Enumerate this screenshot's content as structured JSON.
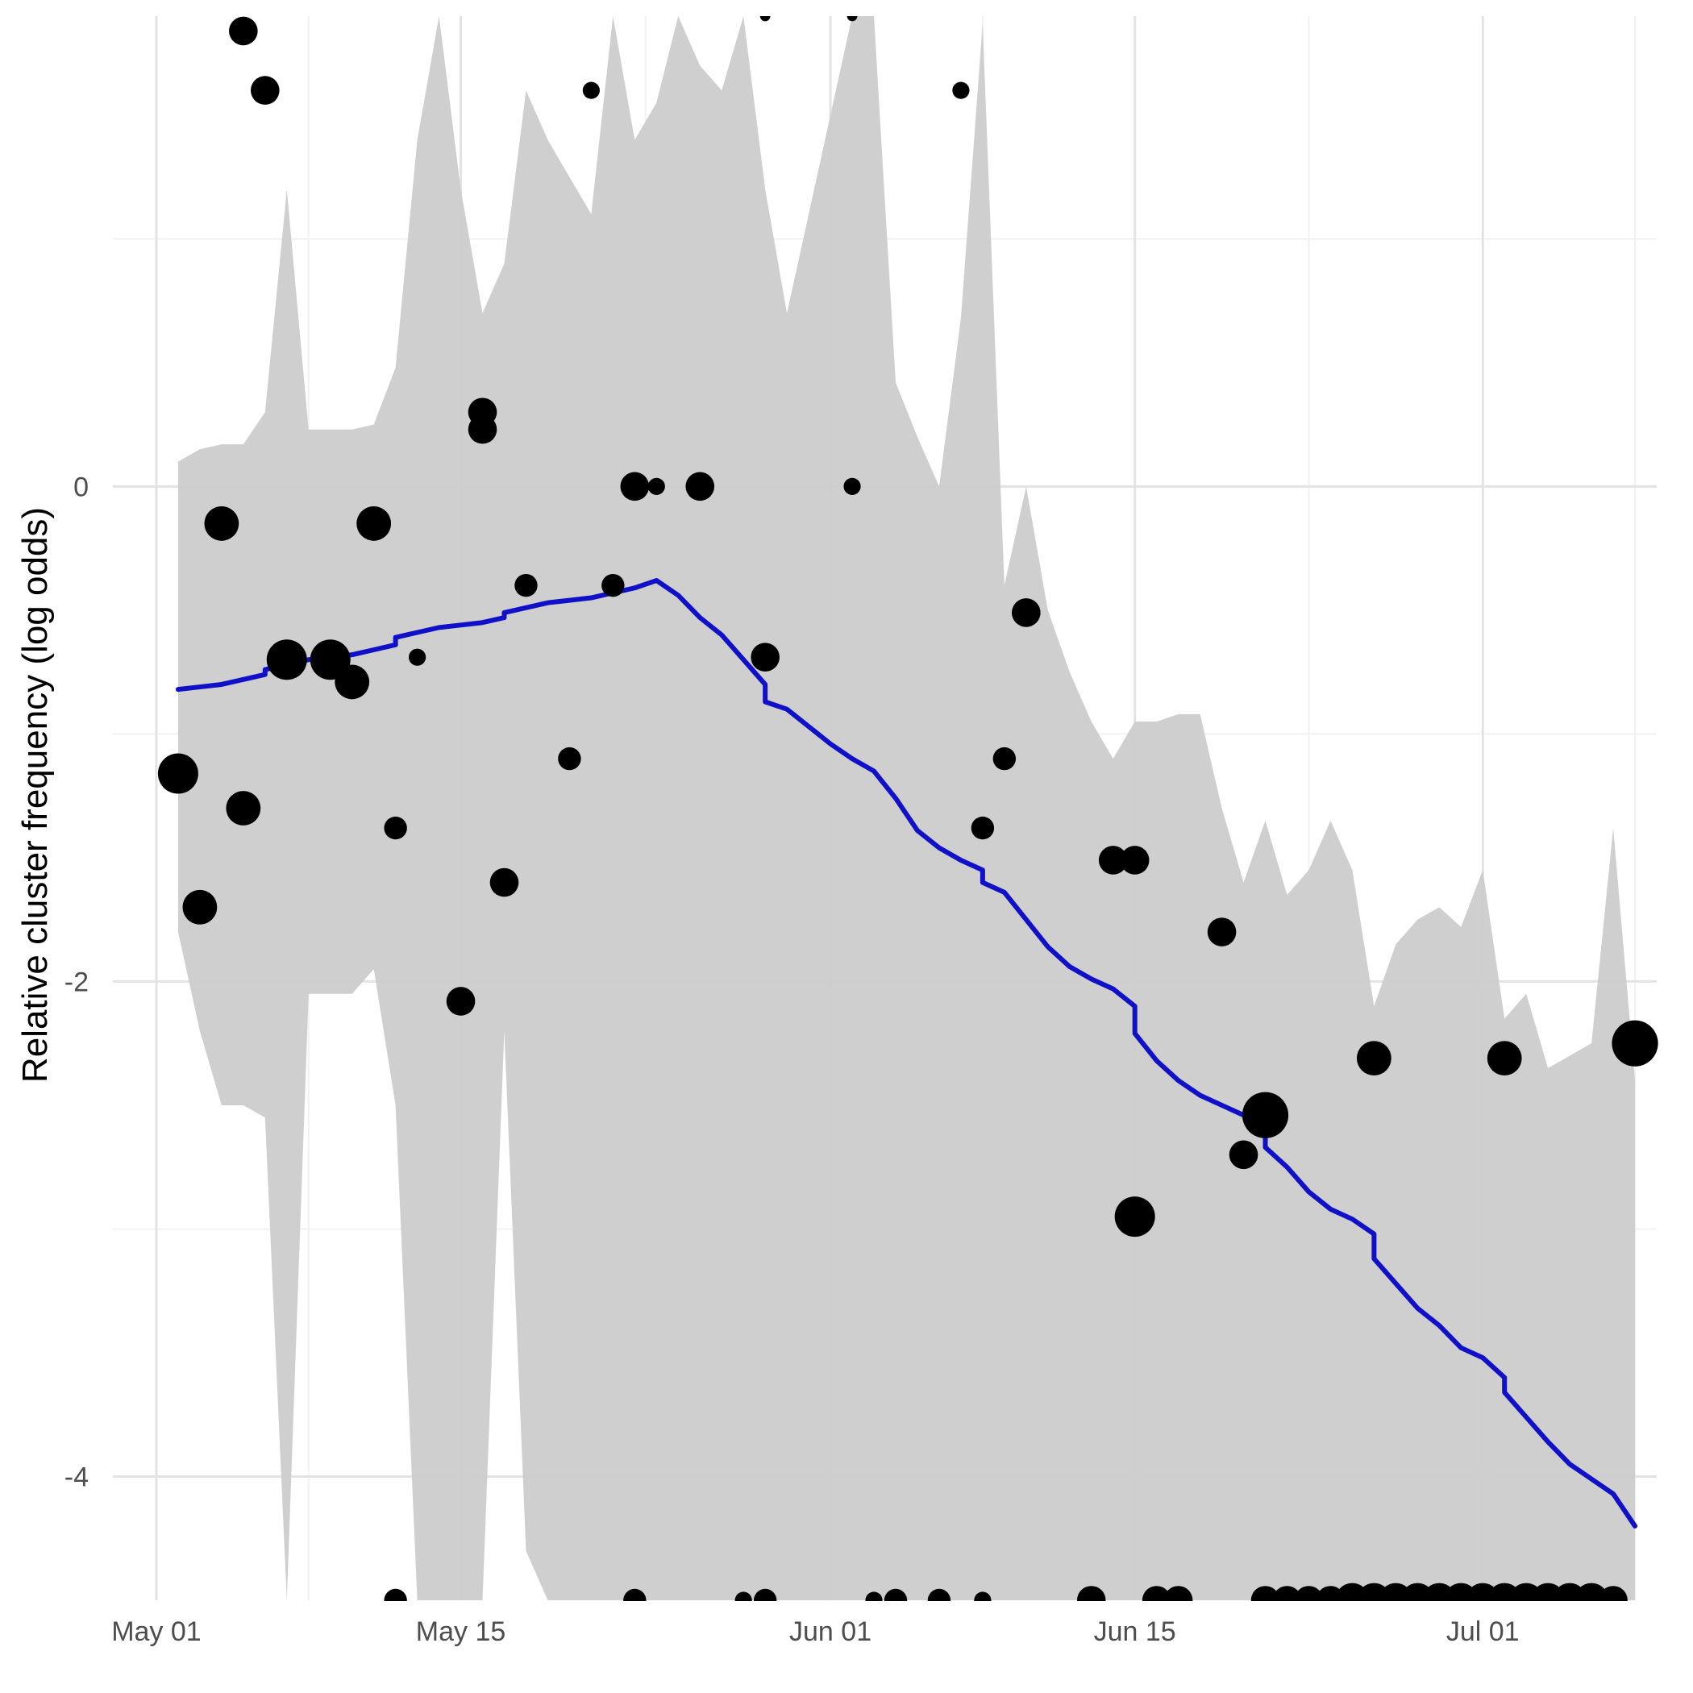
{
  "chart_data": {
    "type": "scatter",
    "title": "",
    "xlabel": "",
    "ylabel": "Relative cluster frequency (log odds)",
    "xlim": [
      "2020-04-29",
      "2020-07-09"
    ],
    "ylim": [
      -4.5,
      1.9
    ],
    "x_ticks": [
      "2020-05-01",
      "2020-05-15",
      "2020-06-01",
      "2020-06-15",
      "2020-07-01"
    ],
    "x_tick_labels": [
      "May 01",
      "May 15",
      "Jun 01",
      "Jun 15",
      "Jul 01"
    ],
    "y_ticks": [
      0,
      -2,
      -4
    ],
    "y_tick_labels": [
      "0",
      "-2",
      "-4"
    ],
    "grid": true,
    "colors": {
      "band": "#cccccc",
      "line": "#1010c8",
      "points": "#000000",
      "grid_major": "#e3e3e3",
      "grid_minor": "#f1f1f1"
    },
    "band": {
      "name": "confidence interval",
      "x": [
        "2020-05-02",
        "2020-05-03",
        "2020-05-04",
        "2020-05-05",
        "2020-05-06",
        "2020-05-07",
        "2020-05-08",
        "2020-05-09",
        "2020-05-10",
        "2020-05-11",
        "2020-05-12",
        "2020-05-13",
        "2020-05-14",
        "2020-05-15",
        "2020-05-16",
        "2020-05-17",
        "2020-05-18",
        "2020-05-19",
        "2020-05-20",
        "2020-05-21",
        "2020-05-22",
        "2020-05-23",
        "2020-05-24",
        "2020-05-25",
        "2020-05-26",
        "2020-05-27",
        "2020-05-28",
        "2020-05-29",
        "2020-05-30",
        "2020-05-31",
        "2020-06-01",
        "2020-06-02",
        "2020-06-03",
        "2020-06-04",
        "2020-06-05",
        "2020-06-06",
        "2020-06-07",
        "2020-06-08",
        "2020-06-09",
        "2020-06-10",
        "2020-06-11",
        "2020-06-12",
        "2020-06-13",
        "2020-06-14",
        "2020-06-15",
        "2020-06-16",
        "2020-06-17",
        "2020-06-18",
        "2020-06-19",
        "2020-06-20",
        "2020-06-21",
        "2020-06-22",
        "2020-06-23",
        "2020-06-24",
        "2020-06-25",
        "2020-06-26",
        "2020-06-27",
        "2020-06-28",
        "2020-06-29",
        "2020-06-30",
        "2020-07-01",
        "2020-07-02",
        "2020-07-03",
        "2020-07-04",
        "2020-07-05",
        "2020-07-06",
        "2020-07-07",
        "2020-07-08"
      ],
      "upper": [
        0.1,
        0.15,
        0.17,
        0.17,
        0.3,
        1.2,
        0.23,
        0.23,
        0.23,
        0.25,
        0.48,
        1.4,
        1.9,
        1.2,
        0.7,
        0.9,
        1.6,
        1.4,
        1.25,
        1.1,
        1.9,
        1.4,
        1.55,
        1.9,
        1.7,
        1.6,
        1.9,
        1.2,
        0.7,
        1.1,
        1.5,
        1.9,
        1.9,
        0.42,
        0.2,
        0.0,
        0.68,
        1.87,
        -0.4,
        0.0,
        -0.5,
        -0.75,
        -0.95,
        -1.1,
        -0.95,
        -0.95,
        -0.92,
        -0.92,
        -1.3,
        -1.6,
        -1.35,
        -1.65,
        -1.55,
        -1.35,
        -1.55,
        -2.1,
        -1.85,
        -1.75,
        -1.7,
        -1.78,
        -1.55,
        -2.15,
        -2.05,
        -2.35,
        -2.3,
        -2.25,
        -1.38,
        -2.4
      ],
      "lower": [
        -1.8,
        -2.2,
        -2.5,
        -2.5,
        -2.55,
        -4.5,
        -2.05,
        -2.05,
        -2.05,
        -1.95,
        -2.5,
        -4.5,
        -4.5,
        -4.5,
        -4.5,
        -2.2,
        -4.3,
        -4.5,
        -4.5,
        -4.5,
        -4.5,
        -4.5,
        -4.5,
        -4.5,
        -4.5,
        -4.5,
        -4.5,
        -4.5,
        -4.5,
        -4.5,
        -4.5,
        -4.5,
        -4.5,
        -4.5,
        -4.5,
        -4.5,
        -4.5,
        -4.5,
        -4.5,
        -4.5,
        -4.5,
        -4.5,
        -4.5,
        -4.5,
        -4.5,
        -4.5,
        -4.5,
        -4.5,
        -4.5,
        -4.5,
        -4.5,
        -4.5,
        -4.5,
        -4.5,
        -4.5,
        -4.5,
        -4.5,
        -4.5,
        -4.5,
        -4.5,
        -4.5,
        -4.5,
        -4.5,
        -4.5,
        -4.5,
        -4.5,
        -4.5,
        -4.5
      ]
    },
    "series": [
      {
        "type": "line",
        "x": [
          "2020-05-02",
          "2020-05-03",
          "2020-05-04",
          "2020-05-05",
          "2020-05-06",
          "2020-05-06",
          "2020-05-07",
          "2020-05-08",
          "2020-05-09",
          "2020-05-10",
          "2020-05-11",
          "2020-05-12",
          "2020-05-12",
          "2020-05-13",
          "2020-05-14",
          "2020-05-15",
          "2020-05-16",
          "2020-05-17",
          "2020-05-17",
          "2020-05-18",
          "2020-05-19",
          "2020-05-20",
          "2020-05-21",
          "2020-05-22",
          "2020-05-23",
          "2020-05-24",
          "2020-05-25",
          "2020-05-26",
          "2020-05-27",
          "2020-05-28",
          "2020-05-29",
          "2020-05-29",
          "2020-05-30",
          "2020-05-31",
          "2020-06-01",
          "2020-06-02",
          "2020-06-03",
          "2020-06-04",
          "2020-06-05",
          "2020-06-06",
          "2020-06-07",
          "2020-06-08",
          "2020-06-08",
          "2020-06-09",
          "2020-06-10",
          "2020-06-11",
          "2020-06-12",
          "2020-06-13",
          "2020-06-14",
          "2020-06-15",
          "2020-06-15",
          "2020-06-16",
          "2020-06-17",
          "2020-06-18",
          "2020-06-19",
          "2020-06-20",
          "2020-06-21",
          "2020-06-21",
          "2020-06-22",
          "2020-06-23",
          "2020-06-24",
          "2020-06-25",
          "2020-06-26",
          "2020-06-26",
          "2020-06-27",
          "2020-06-28",
          "2020-06-29",
          "2020-06-30",
          "2020-07-01",
          "2020-07-02",
          "2020-07-02",
          "2020-07-03",
          "2020-07-04",
          "2020-07-05",
          "2020-07-06",
          "2020-07-07",
          "2020-07-08"
        ],
        "values": [
          -0.82,
          -0.81,
          -0.8,
          -0.78,
          -0.76,
          -0.74,
          -0.72,
          -0.7,
          -0.69,
          -0.68,
          -0.66,
          -0.64,
          -0.61,
          -0.59,
          -0.57,
          -0.56,
          -0.55,
          -0.53,
          -0.51,
          -0.49,
          -0.47,
          -0.46,
          -0.45,
          -0.43,
          -0.41,
          -0.38,
          -0.44,
          -0.53,
          -0.6,
          -0.7,
          -0.8,
          -0.87,
          -0.9,
          -0.97,
          -1.04,
          -1.1,
          -1.15,
          -1.26,
          -1.39,
          -1.46,
          -1.51,
          -1.55,
          -1.6,
          -1.64,
          -1.75,
          -1.86,
          -1.94,
          -1.99,
          -2.03,
          -2.1,
          -2.21,
          -2.32,
          -2.4,
          -2.46,
          -2.5,
          -2.54,
          -2.6,
          -2.67,
          -2.75,
          -2.85,
          -2.92,
          -2.96,
          -3.02,
          -3.12,
          -3.22,
          -3.32,
          -3.39,
          -3.48,
          -3.52,
          -3.6,
          -3.66,
          -3.76,
          -3.86,
          -3.95,
          -4.01,
          -4.07,
          -4.2
        ]
      },
      {
        "type": "scatter",
        "x": [
          "2020-05-02",
          "2020-05-03",
          "2020-05-04",
          "2020-05-05",
          "2020-05-05",
          "2020-05-06",
          "2020-05-07",
          "2020-05-09",
          "2020-05-10",
          "2020-05-11",
          "2020-05-12",
          "2020-05-13",
          "2020-05-15",
          "2020-05-16",
          "2020-05-16",
          "2020-05-17",
          "2020-05-18",
          "2020-05-20",
          "2020-05-21",
          "2020-05-22",
          "2020-05-23",
          "2020-05-24",
          "2020-05-26",
          "2020-05-29",
          "2020-06-02",
          "2020-06-07",
          "2020-06-08",
          "2020-06-09",
          "2020-06-10",
          "2020-06-14",
          "2020-06-15",
          "2020-06-15",
          "2020-06-19",
          "2020-06-20",
          "2020-06-21",
          "2020-06-26",
          "2020-07-02",
          "2020-07-08"
        ],
        "values": [
          -1.16,
          -1.7,
          -0.15,
          1.84,
          -1.3,
          1.6,
          -0.7,
          -0.7,
          -0.79,
          -0.15,
          -1.38,
          -0.69,
          -2.08,
          0.3,
          0.23,
          -1.6,
          -0.4,
          -1.1,
          1.6,
          -0.4,
          0.0,
          0.0,
          0.0,
          -0.69,
          0.0,
          1.6,
          -1.38,
          -1.1,
          -0.51,
          -1.51,
          -1.51,
          -2.95,
          -1.8,
          -2.7,
          -2.54,
          -2.31,
          -2.31,
          -2.25
        ],
        "sizes": [
          5,
          4,
          4,
          3,
          4,
          3,
          5,
          5,
          4,
          4,
          2,
          1,
          3,
          3,
          3,
          3,
          2,
          2,
          1,
          2,
          3,
          1,
          3,
          3,
          1,
          1,
          2,
          2,
          3,
          3,
          3,
          5,
          3,
          3,
          6,
          4,
          4,
          6
        ]
      }
    ],
    "floor_points": {
      "y": -4.5,
      "x": [
        "2020-05-12",
        "2020-05-23",
        "2020-05-28",
        "2020-05-29",
        "2020-06-03",
        "2020-06-04",
        "2020-06-06",
        "2020-06-08",
        "2020-06-13",
        "2020-06-16",
        "2020-06-17",
        "2020-06-21",
        "2020-06-22",
        "2020-06-23",
        "2020-06-24",
        "2020-06-25",
        "2020-06-26",
        "2020-06-27",
        "2020-06-28",
        "2020-06-29",
        "2020-06-30",
        "2020-07-01",
        "2020-07-02",
        "2020-07-03",
        "2020-07-04",
        "2020-07-05",
        "2020-07-06",
        "2020-07-07"
      ],
      "sizes": [
        2,
        2,
        1,
        2,
        1,
        2,
        2,
        1,
        3,
        3,
        3,
        3,
        3,
        3,
        3,
        4,
        4,
        4,
        4,
        4,
        4,
        4,
        4,
        4,
        4,
        4,
        4,
        3
      ]
    },
    "top_points": {
      "y": 1.9,
      "x": [
        "2020-05-29",
        "2020-06-02"
      ],
      "sizes": [
        1,
        1
      ]
    }
  }
}
